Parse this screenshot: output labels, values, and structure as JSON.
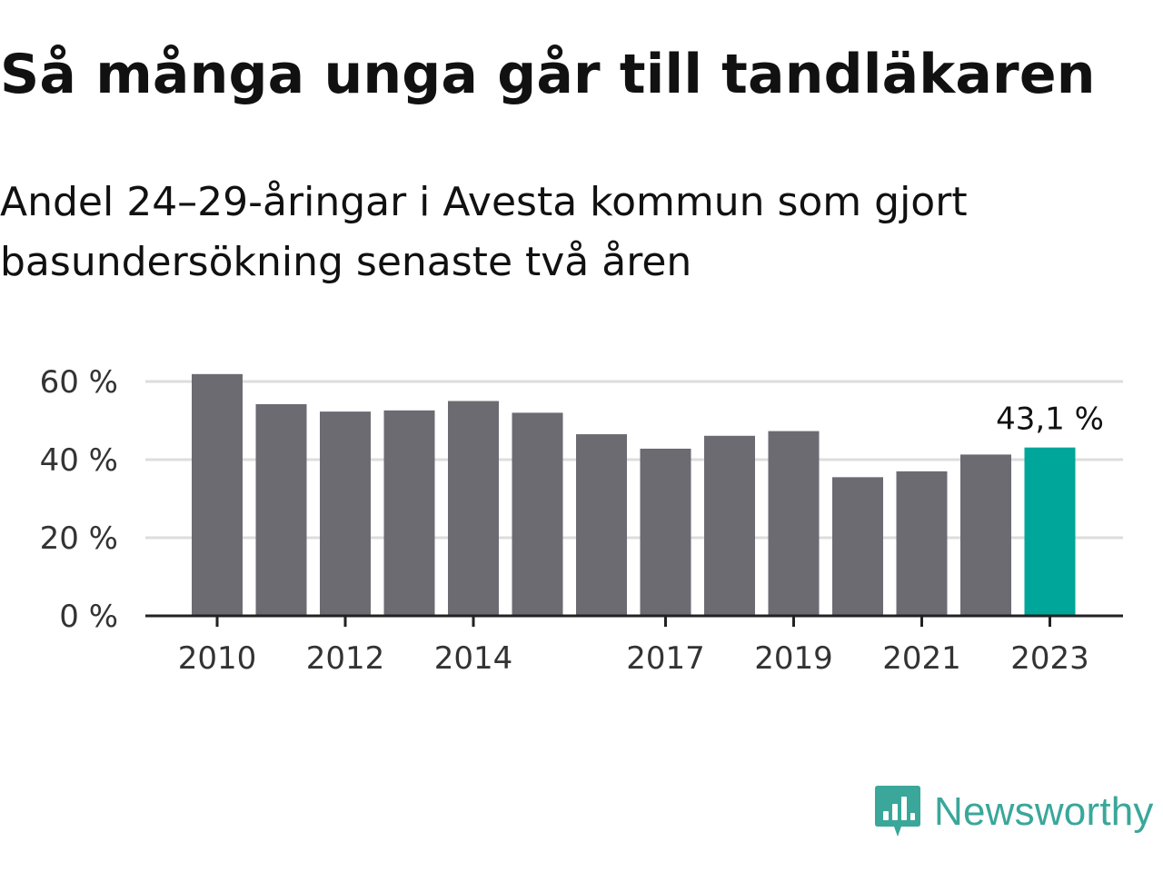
{
  "title": "Så många unga går till tandläkaren",
  "subtitle": "Andel 24–29-åringar i Avesta kommun som gjort basundersökning senaste två åren",
  "colors": {
    "bar": "#6c6b72",
    "highlight": "#00a699",
    "grid": "#dddddd",
    "axis": "#222222",
    "brand": "#3aa79a"
  },
  "brand": {
    "name": "Newsworthy",
    "icon": "newsworthy-logo-icon"
  },
  "chart_data": {
    "type": "bar",
    "categories": [
      "2010",
      "2011",
      "2012",
      "2013",
      "2014",
      "2015",
      "2016",
      "2017",
      "2018",
      "2019",
      "2020",
      "2021",
      "2022",
      "2023"
    ],
    "values": [
      61.9,
      54.2,
      52.3,
      52.6,
      55.0,
      52.0,
      46.5,
      42.8,
      46.1,
      47.3,
      35.5,
      37.0,
      41.3,
      43.1
    ],
    "x_tick_labels": [
      "2010",
      "2012",
      "2014",
      "2017",
      "2019",
      "2021",
      "2023"
    ],
    "y_ticks": [
      0,
      20,
      40,
      60
    ],
    "y_tick_labels": [
      "0 %",
      "20 %",
      "40 %",
      "60 %"
    ],
    "ylim": [
      0,
      60
    ],
    "highlight_category": "2023",
    "highlight_label": "43,1 %",
    "grid": true,
    "legend": "none"
  }
}
